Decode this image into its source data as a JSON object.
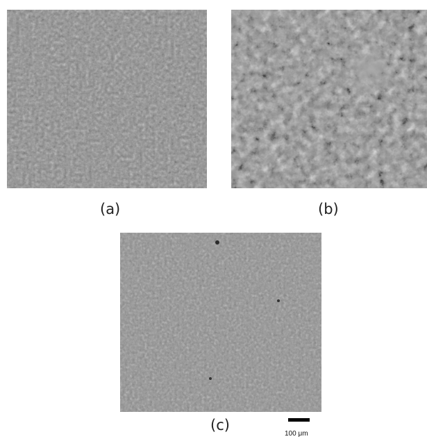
{
  "panels": [
    {
      "id": "a",
      "label": "(a)",
      "texture": "fine-granular",
      "tone": "#8a8a8a"
    },
    {
      "id": "b",
      "label": "(b)",
      "texture": "coarse-granular",
      "tone": "#8c8c8c"
    },
    {
      "id": "c",
      "label": "(c)",
      "texture": "fine-granular",
      "tone": "#8f8f8f"
    }
  ],
  "scale": {
    "label": "100 μm"
  }
}
